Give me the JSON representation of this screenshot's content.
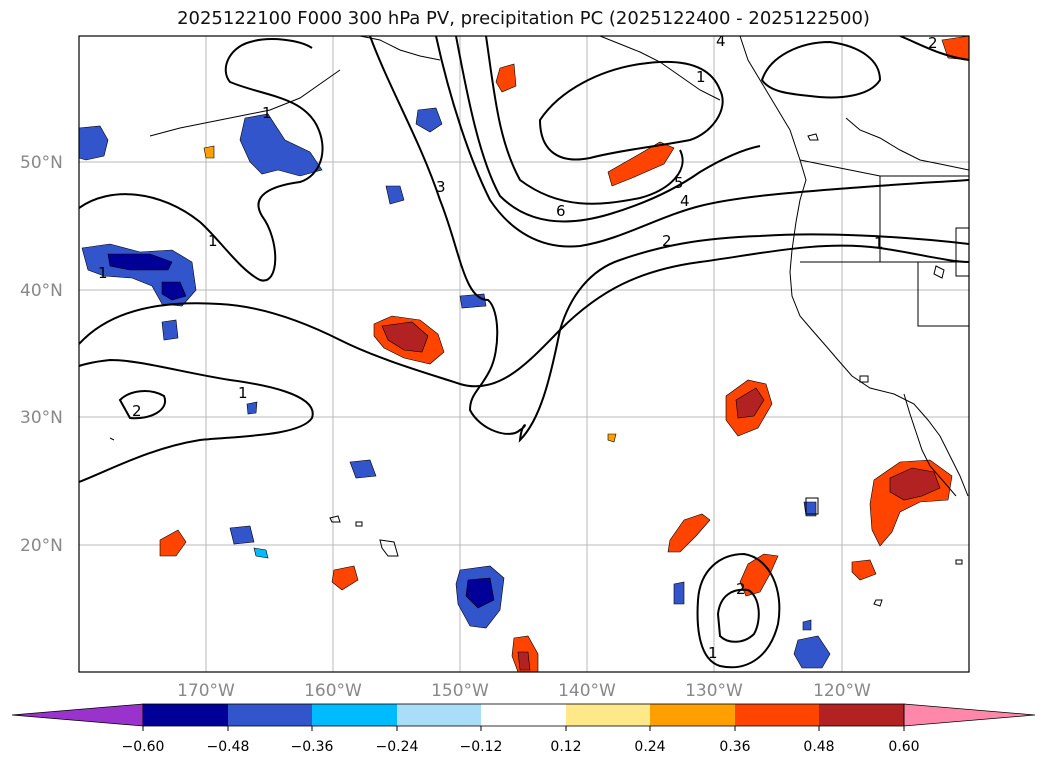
{
  "title": "2025122100 F000 300 hPa PV, precipitation PC (2025122400 - 2025122500)",
  "lat_labels": [
    "50°N",
    "40°N",
    "30°N",
    "20°N"
  ],
  "lon_labels": [
    "170°W",
    "160°W",
    "150°W",
    "140°W",
    "130°W",
    "120°W"
  ],
  "contour_labels": [
    "1",
    "1",
    "1",
    "1",
    "1",
    "1",
    "2",
    "2",
    "2",
    "3",
    "4",
    "4",
    "5",
    "6",
    "1",
    "2"
  ],
  "colorbar": {
    "colors": [
      "#9933cc",
      "#000099",
      "#3355cc",
      "#00bbff",
      "#aaddf8",
      "#ffffff",
      "#ffe88a",
      "#ffa000",
      "#ff4400",
      "#b22222",
      "#ff88aa"
    ],
    "ticks": [
      "−0.60",
      "−0.48",
      "−0.36",
      "−0.24",
      "−0.12",
      "0.12",
      "0.24",
      "0.36",
      "0.48",
      "0.60"
    ]
  }
}
